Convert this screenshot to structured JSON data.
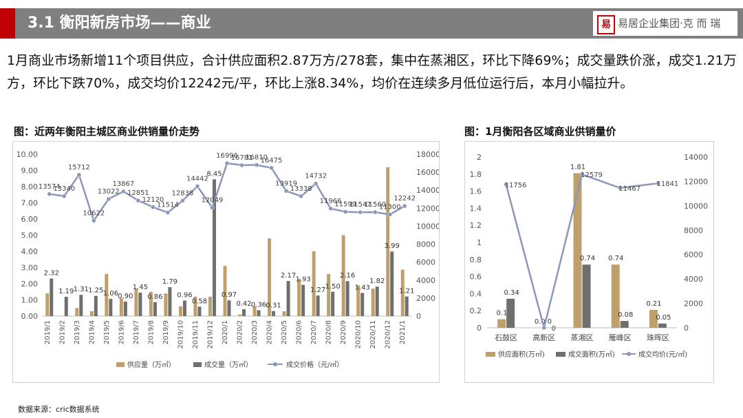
{
  "header": {
    "title": "3.1 衡阳新房市场——商业",
    "logo_seal": "易",
    "logo_text": "易居企业集团·克 而 瑞"
  },
  "summary": "1月商业市场新增11个项目供应，合计供应面积2.87万方/278套，集中在蒸湘区，环比下降69%；成交量跌价涨，成交1.21万方，环比下跌70%，成交均价12242元/平，环比上涨8.34%，均价在连续多月低位运行后，本月小幅拉升。",
  "source": "数据来源：cric数据系统",
  "colors": {
    "supply": "#bfa06a",
    "deal": "#6f6f6f",
    "price": "#8b97b8"
  },
  "chart_data": [
    {
      "type": "bar",
      "title": "图：近两年衡阳主城区商业供销量价走势",
      "categories": [
        "2019/1",
        "2019/2",
        "2019/3",
        "2019/4",
        "2019/5",
        "2019/6",
        "2019/7",
        "2019/8",
        "2019/9",
        "2019/10",
        "2019/11",
        "2019/12",
        "2020/1",
        "2020/2",
        "2020/3",
        "2020/4",
        "2020/5",
        "2020/6",
        "2020/7",
        "2020/8",
        "2020/9",
        "2020/10",
        "2020/11",
        "2020/12",
        "2021/1"
      ],
      "series": [
        {
          "name": "供应量（万㎡）",
          "type": "bar",
          "axis": "left",
          "values": [
            1.4,
            0.0,
            0.5,
            0.3,
            2.6,
            1.1,
            1.7,
            1.5,
            1.4,
            0.6,
            1.2,
            1.2,
            3.1,
            0.1,
            0.6,
            4.8,
            0.3,
            2.3,
            4.0,
            2.6,
            5.0,
            1.9,
            1.7,
            9.2,
            2.87
          ]
        },
        {
          "name": "成交量（万㎡）",
          "type": "bar",
          "axis": "left",
          "values": [
            2.32,
            1.19,
            1.31,
            1.25,
            1.06,
            0.9,
            1.45,
            0.86,
            1.79,
            0.96,
            0.58,
            8.45,
            0.97,
            0.42,
            0.36,
            0.31,
            2.17,
            1.93,
            1.27,
            1.5,
            2.16,
            1.43,
            1.82,
            3.99,
            1.21
          ]
        },
        {
          "name": "成交价格（元/㎡）",
          "type": "line",
          "axis": "right",
          "values": [
            13574,
            13340,
            15712,
            10622,
            13022,
            13867,
            12851,
            12120,
            11514,
            12838,
            14442,
            12049,
            16996,
            16781,
            16810,
            16475,
            13919,
            13338,
            14732,
            11966,
            11599,
            11547,
            11560,
            11300,
            12242
          ]
        }
      ],
      "deal_labels": [
        "2.32",
        "1.19",
        "1.31",
        "1.25",
        "1.06",
        "0.90",
        "1.45",
        "0.86",
        "1.79",
        "0.96",
        "0.58",
        "8.45",
        "0.97",
        "0.42",
        "0.36",
        "0.31",
        "2.17",
        "1.93",
        "1.27",
        "1.50",
        "2.16",
        "1.43",
        "1.82",
        "3.99",
        "1.21"
      ],
      "ylim": [
        0,
        10
      ],
      "yticks": [
        "0.00",
        "1.00",
        "2.00",
        "3.00",
        "4.00",
        "5.00",
        "6.00",
        "7.00",
        "8.00",
        "9.00",
        "10.00"
      ],
      "y2lim": [
        0,
        18000
      ],
      "y2ticks": [
        "0",
        "2000",
        "4000",
        "6000",
        "8000",
        "10000",
        "12000",
        "14000",
        "16000",
        "18000"
      ],
      "legend_position": "bottom"
    },
    {
      "type": "bar",
      "title": "图：1月衡阳各区域商业供销量价",
      "categories": [
        "石鼓区",
        "高新区",
        "蒸湘区",
        "雁峰区",
        "珠晖区"
      ],
      "series": [
        {
          "name": "供应面积(万㎡)",
          "type": "bar",
          "axis": "left",
          "values": [
            0.1,
            0.0,
            1.81,
            0.74,
            0.21
          ],
          "labels": [
            "0.1",
            "0.0",
            "1.81",
            "0.74",
            "0.21"
          ]
        },
        {
          "name": "成交面积(万㎡)",
          "type": "bar",
          "axis": "left",
          "values": [
            0.34,
            0.0,
            0.74,
            0.08,
            0.05
          ],
          "labels": [
            "0.34",
            "0",
            "0.74",
            "0.08",
            "0.05"
          ]
        },
        {
          "name": "成交均价(元/㎡)",
          "type": "line",
          "axis": "right",
          "values": [
            11756,
            0,
            12579,
            11467,
            11841
          ],
          "labels": [
            "11756",
            "0",
            "12579",
            "11467",
            "11841"
          ]
        }
      ],
      "ylim": [
        0,
        2
      ],
      "yticks": [
        "0",
        "0.2",
        "0.4",
        "0.6",
        "0.8",
        "1",
        "1.2",
        "1.4",
        "1.6",
        "1.8",
        "2"
      ],
      "y2lim": [
        0,
        14000
      ],
      "y2ticks": [
        "0",
        "2000",
        "4000",
        "6000",
        "8000",
        "10000",
        "12000",
        "14000"
      ],
      "legend_position": "bottom"
    }
  ]
}
